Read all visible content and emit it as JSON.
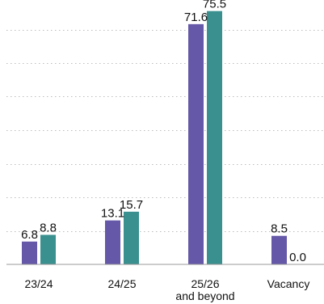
{
  "chart_data": {
    "type": "bar",
    "categories": [
      [
        "23/24"
      ],
      [
        "24/25"
      ],
      [
        "25/26",
        "and beyond"
      ],
      [
        "Vacancy"
      ]
    ],
    "series": [
      {
        "values": [
          6.8,
          13.1,
          71.6,
          8.5
        ],
        "color": "#6558a8"
      },
      {
        "values": [
          8.8,
          15.7,
          75.5,
          0.0
        ],
        "color": "#3a8f8f"
      }
    ],
    "data_labels": [
      [
        "6.8",
        "13.1",
        "71.6",
        "8.5"
      ],
      [
        "8.8",
        "15.7",
        "75.5",
        "0.0"
      ]
    ],
    "ylim": [
      0,
      80
    ],
    "grid": true,
    "grid_style": "dotted",
    "legend": "none"
  }
}
